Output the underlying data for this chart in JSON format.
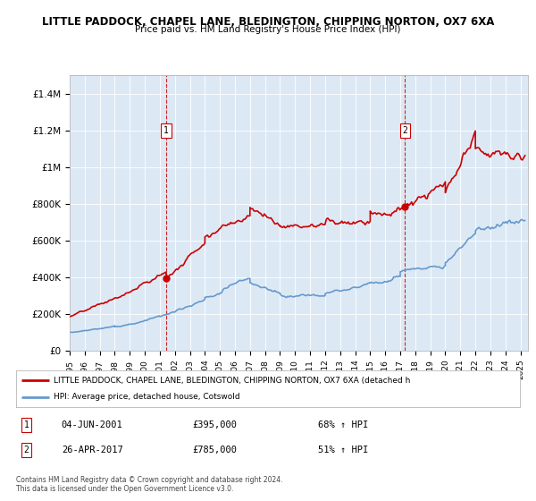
{
  "title": "LITTLE PADDOCK, CHAPEL LANE, BLEDINGTON, CHIPPING NORTON, OX7 6XA",
  "subtitle": "Price paid vs. HM Land Registry's House Price Index (HPI)",
  "plot_bg_color": "#dce9f5",
  "ylim": [
    0,
    1500000
  ],
  "yticks": [
    0,
    200000,
    400000,
    600000,
    800000,
    1000000,
    1200000,
    1400000
  ],
  "ytick_labels": [
    "£0",
    "£200K",
    "£400K",
    "£600K",
    "£800K",
    "£1M",
    "£1.2M",
    "£1.4M"
  ],
  "xlim_start": 1995.0,
  "xlim_end": 2025.5,
  "xticks": [
    1995,
    1996,
    1997,
    1998,
    1999,
    2000,
    2001,
    2002,
    2003,
    2004,
    2005,
    2006,
    2007,
    2008,
    2009,
    2010,
    2011,
    2012,
    2013,
    2014,
    2015,
    2016,
    2017,
    2018,
    2019,
    2020,
    2021,
    2022,
    2023,
    2024,
    2025
  ],
  "red_line_color": "#cc0000",
  "blue_line_color": "#6699cc",
  "vline_color": "#cc0000",
  "marker1_date": 2001.42,
  "marker1_value": 395000,
  "marker2_date": 2017.32,
  "marker2_value": 785000,
  "legend_red_label": "LITTLE PADDOCK, CHAPEL LANE, BLEDINGTON, CHIPPING NORTON, OX7 6XA (detached h",
  "legend_blue_label": "HPI: Average price, detached house, Cotswold",
  "annotation1_date": "04-JUN-2001",
  "annotation1_price": "£395,000",
  "annotation1_hpi": "68% ↑ HPI",
  "annotation2_date": "26-APR-2017",
  "annotation2_price": "£785,000",
  "annotation2_hpi": "51% ↑ HPI",
  "footer": "Contains HM Land Registry data © Crown copyright and database right 2024.\nThis data is licensed under the Open Government Licence v3.0."
}
